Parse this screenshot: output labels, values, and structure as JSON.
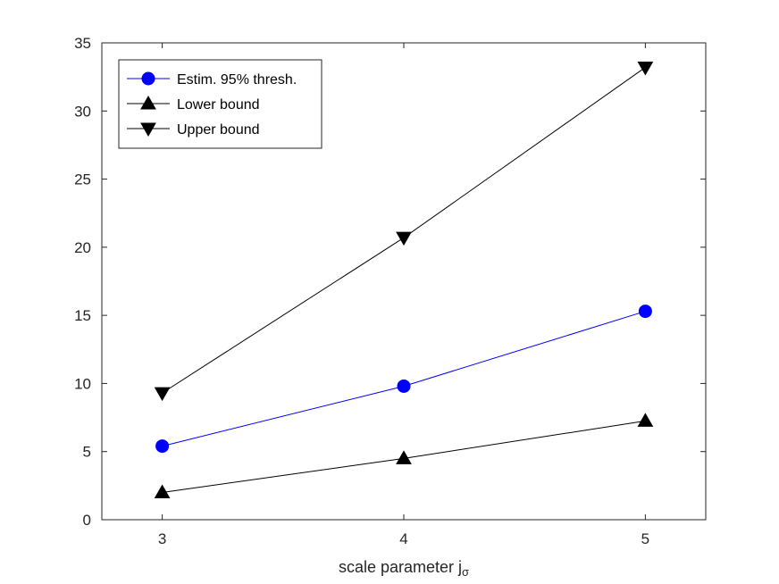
{
  "chart_data": {
    "type": "line",
    "title": "",
    "xlabel": "scale parameter j",
    "xlabel_subscript": "σ",
    "ylabel": "",
    "x": [
      3,
      4,
      5
    ],
    "xlim": [
      2.75,
      5.25
    ],
    "ylim": [
      0,
      35
    ],
    "xticks": [
      "3",
      "4",
      "5"
    ],
    "yticks": [
      "0",
      "5",
      "10",
      "15",
      "20",
      "25",
      "30",
      "35"
    ],
    "grid": false,
    "legend_position": "top-left",
    "series": [
      {
        "name": "Estim. 95% thresh.",
        "marker": "circle",
        "color": "#0000ff",
        "line_color": "#0000ff",
        "values": [
          5.4,
          9.8,
          15.3
        ]
      },
      {
        "name": "Lower bound",
        "marker": "triangle-up",
        "color": "#000000",
        "line_color": "#000000",
        "values": [
          2.0,
          4.5,
          7.25
        ]
      },
      {
        "name": "Upper bound",
        "marker": "triangle-down",
        "color": "#000000",
        "line_color": "#000000",
        "values": [
          9.3,
          20.7,
          33.2
        ]
      }
    ]
  }
}
